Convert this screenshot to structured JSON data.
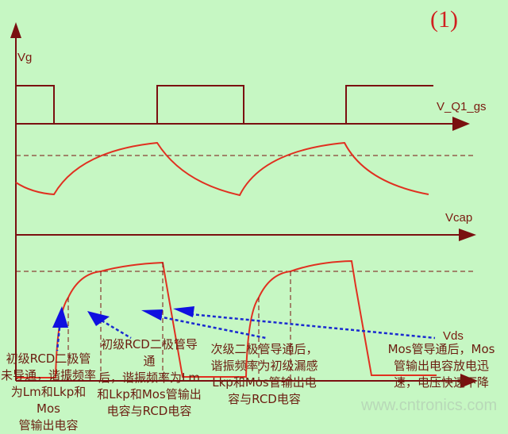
{
  "figure_number": "(1)",
  "signals": {
    "vg_axis_label": "Vg",
    "gate_label": "V_Q1_gs",
    "cap_label": "Vcap",
    "vds_label": "Vds"
  },
  "annotations": [
    {
      "lines": [
        "初级RCD二极管",
        "未导通，谐振频率",
        "为Lm和Lkp和Mos",
        "管输出电容"
      ]
    },
    {
      "lines": [
        "初级RCD二极管导通",
        "后，谐振频率为Lm",
        "和Lkp和Mos管输出",
        "电容与RCD电容"
      ]
    },
    {
      "lines": [
        "次级二极管导通后，",
        "谐振频率为初级漏感",
        "Lkp和Mos管输出电",
        "容与RCD电容"
      ]
    },
    {
      "lines": [
        "Mos管导通后，Mos",
        "管输出电容放电迅",
        "速，电压快速下降"
      ]
    }
  ],
  "watermark": "www.cntronics.com",
  "colors": {
    "background": "#c6f7c3",
    "axis": "#7a1010",
    "waveform": "#e03020",
    "arrow": "#1010e0"
  }
}
